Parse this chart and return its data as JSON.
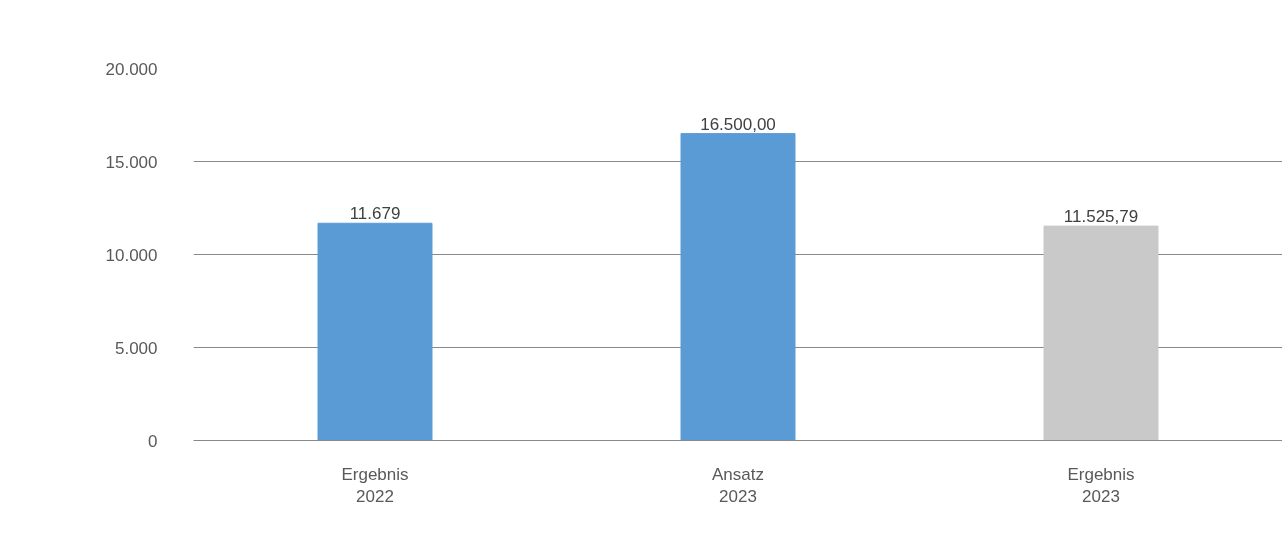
{
  "chart_data": {
    "type": "bar",
    "categories": [
      "Ergebnis\n2022",
      "Ansatz\n2023",
      "Ergebnis\n2023"
    ],
    "values": [
      11679,
      16500,
      11525.79
    ],
    "colors": [
      "#5b9bd5",
      "#5b9bd5",
      "#c9c9c9"
    ],
    "value_labels": [
      "11.679",
      "16.500,00",
      "11.525,79"
    ],
    "ylim": [
      0,
      20000
    ],
    "yticks": [
      {
        "value": 0,
        "label": "0"
      },
      {
        "value": 5000,
        "label": "5.000"
      },
      {
        "value": 10000,
        "label": "10.000"
      },
      {
        "value": 15000,
        "label": "15.000"
      },
      {
        "value": 20000,
        "label": "20.000"
      }
    ],
    "grid": "y"
  }
}
